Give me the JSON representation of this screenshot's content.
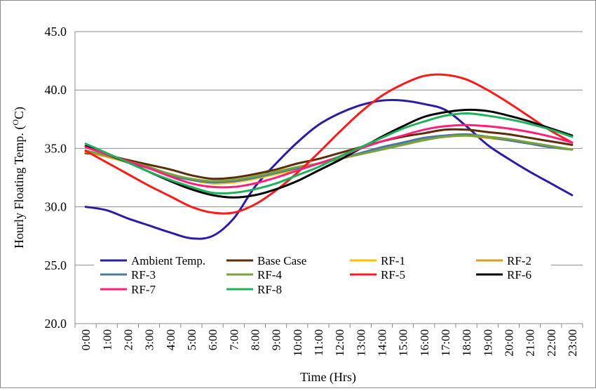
{
  "chart_data": {
    "type": "line",
    "xlabel": "Time (Hrs)",
    "ylabel": "Hourly Floating Temp. (",
    "ylabel_super": "O",
    "ylabel_suffix": "C)",
    "ylim": [
      20.0,
      45.0
    ],
    "yticks": [
      "20.0",
      "25.0",
      "30.0",
      "35.0",
      "40.0",
      "45.0"
    ],
    "grid": "horizontal",
    "legend_position": "lower-left inside plot",
    "categories": [
      "0:00",
      "1:00",
      "2:00",
      "3:00",
      "4:00",
      "5:00",
      "6:00",
      "7:00",
      "8:00",
      "9:00",
      "10:00",
      "11:00",
      "12:00",
      "13:00",
      "14:00",
      "15:00",
      "16:00",
      "17:00",
      "18:00",
      "19:00",
      "20:00",
      "21:00",
      "22:00",
      "23:00"
    ],
    "series": [
      {
        "name": "Ambient Temp.",
        "color": "#2b1ca6",
        "values": [
          30.0,
          29.7,
          29.0,
          28.4,
          27.8,
          27.3,
          27.5,
          29.0,
          31.7,
          33.7,
          35.5,
          37.0,
          38.0,
          38.7,
          39.1,
          39.1,
          38.8,
          38.3,
          36.9,
          35.3,
          34.1,
          33.0,
          32.0,
          31.0
        ]
      },
      {
        "name": "Base Case",
        "color": "#5b2c06",
        "values": [
          34.6,
          34.4,
          34.0,
          33.6,
          33.2,
          32.7,
          32.4,
          32.5,
          32.8,
          33.2,
          33.7,
          34.1,
          34.6,
          35.1,
          35.6,
          36.0,
          36.3,
          36.6,
          36.6,
          36.4,
          36.2,
          35.9,
          35.6,
          35.3
        ]
      },
      {
        "name": "RF-1",
        "color": "#ffc000",
        "values": [
          34.7,
          34.3,
          33.8,
          33.3,
          32.8,
          32.3,
          32.0,
          32.1,
          32.4,
          32.8,
          33.2,
          33.7,
          34.1,
          34.6,
          35.1,
          35.5,
          35.9,
          36.1,
          36.2,
          36.0,
          35.7,
          35.4,
          35.1,
          34.9
        ]
      },
      {
        "name": "RF-2",
        "color": "#d4a017",
        "values": [
          34.7,
          34.3,
          33.8,
          33.3,
          32.8,
          32.3,
          32.1,
          32.2,
          32.5,
          32.9,
          33.3,
          33.7,
          34.1,
          34.6,
          35.0,
          35.4,
          35.8,
          36.0,
          36.1,
          35.9,
          35.7,
          35.4,
          35.1,
          34.9
        ]
      },
      {
        "name": "RF-3",
        "color": "#4a76a8",
        "values": [
          34.8,
          34.4,
          33.9,
          33.3,
          32.7,
          32.3,
          32.1,
          32.2,
          32.5,
          32.9,
          33.3,
          33.7,
          34.1,
          34.6,
          35.1,
          35.5,
          35.9,
          36.1,
          36.2,
          36.0,
          35.7,
          35.4,
          35.1,
          34.9
        ]
      },
      {
        "name": "RF-4",
        "color": "#76a33e",
        "values": [
          34.8,
          34.4,
          33.9,
          33.4,
          32.8,
          32.4,
          32.2,
          32.3,
          32.6,
          33.0,
          33.4,
          33.7,
          34.1,
          34.5,
          34.9,
          35.3,
          35.7,
          36.0,
          36.1,
          36.0,
          35.8,
          35.5,
          35.2,
          34.9
        ]
      },
      {
        "name": "RF-5",
        "color": "#ff1a1a",
        "values": [
          34.8,
          33.8,
          32.8,
          31.8,
          30.9,
          30.0,
          29.5,
          29.5,
          30.2,
          31.4,
          32.9,
          34.6,
          36.4,
          38.1,
          39.5,
          40.5,
          41.2,
          41.3,
          40.9,
          40.0,
          38.9,
          37.7,
          36.5,
          35.5
        ]
      },
      {
        "name": "RF-6",
        "color": "#000000",
        "values": [
          35.2,
          34.5,
          33.8,
          33.0,
          32.2,
          31.5,
          31.0,
          30.8,
          31.0,
          31.5,
          32.2,
          33.1,
          34.0,
          35.0,
          36.0,
          36.9,
          37.7,
          38.1,
          38.3,
          38.2,
          37.8,
          37.3,
          36.7,
          36.1
        ]
      },
      {
        "name": "RF-7",
        "color": "#ff1f7a",
        "values": [
          35.1,
          34.5,
          33.9,
          33.3,
          32.6,
          32.0,
          31.7,
          31.7,
          32.0,
          32.5,
          33.1,
          33.7,
          34.3,
          35.0,
          35.6,
          36.1,
          36.6,
          36.9,
          37.0,
          36.9,
          36.7,
          36.4,
          36.0,
          35.5
        ]
      },
      {
        "name": "RF-8",
        "color": "#1fb05a",
        "values": [
          35.4,
          34.6,
          33.8,
          33.0,
          32.3,
          31.7,
          31.2,
          31.2,
          31.5,
          32.0,
          32.7,
          33.4,
          34.3,
          35.1,
          35.9,
          36.7,
          37.3,
          37.8,
          38.0,
          37.8,
          37.5,
          37.1,
          36.6,
          36.0
        ]
      }
    ]
  }
}
